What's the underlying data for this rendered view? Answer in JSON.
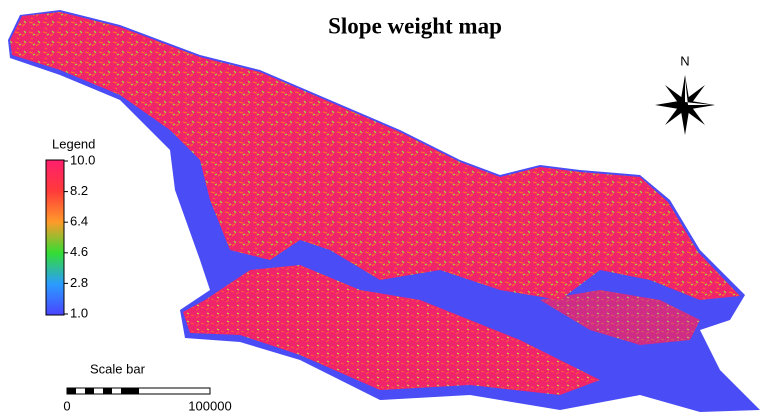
{
  "title": "Slope weight map",
  "north": "N",
  "legend": {
    "title": "Legend",
    "labels": [
      "10.0",
      "8.2",
      "6.4",
      "4.6",
      "2.8",
      "1.0"
    ]
  },
  "scale_bar": {
    "title": "Scale bar",
    "labels": [
      "0",
      "100000"
    ]
  }
}
